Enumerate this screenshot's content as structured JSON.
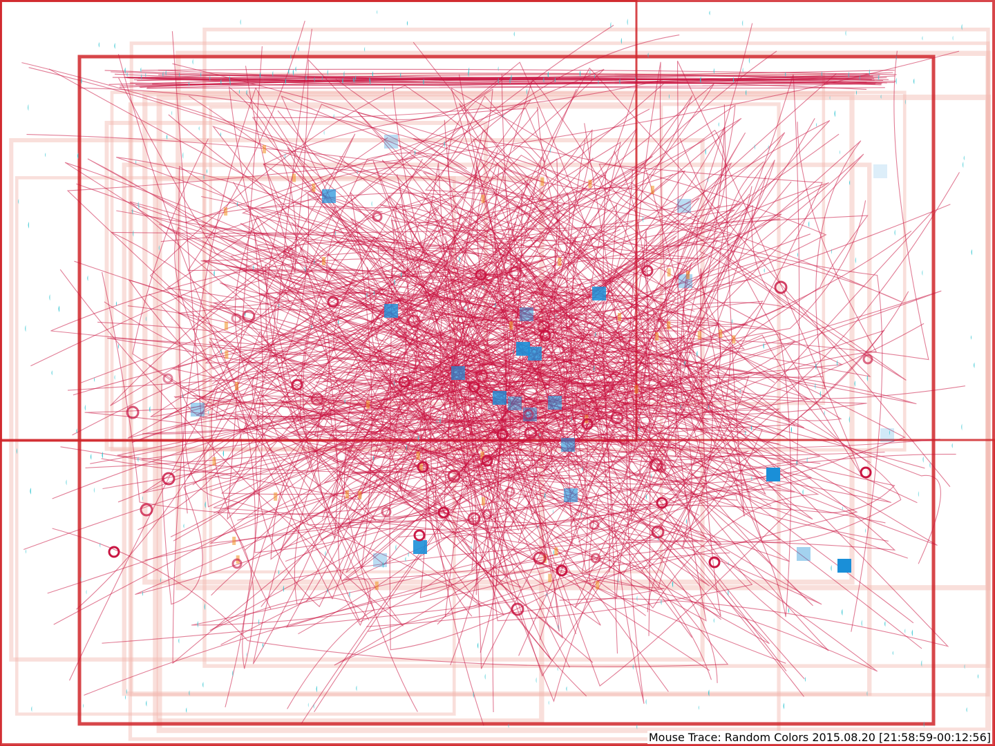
{
  "caption": "Mouse Trace: Random Colors 2015.08.20 [21:58:59-00:12:56]",
  "colors": {
    "background": "#ffffff",
    "trace": "#c8103e",
    "window_frame": "#d0262a",
    "window_frame_faint": "#f2b8b0",
    "click_marker": "#2ec4d0",
    "release_ring": "#c8103e",
    "scroll_square": "#1a8fd8",
    "drag_accent": "#f09020"
  },
  "legend": {
    "trace": "mouse-path-line",
    "click": "half-disc-marker",
    "release": "ring-marker",
    "scroll": "square-marker"
  }
}
